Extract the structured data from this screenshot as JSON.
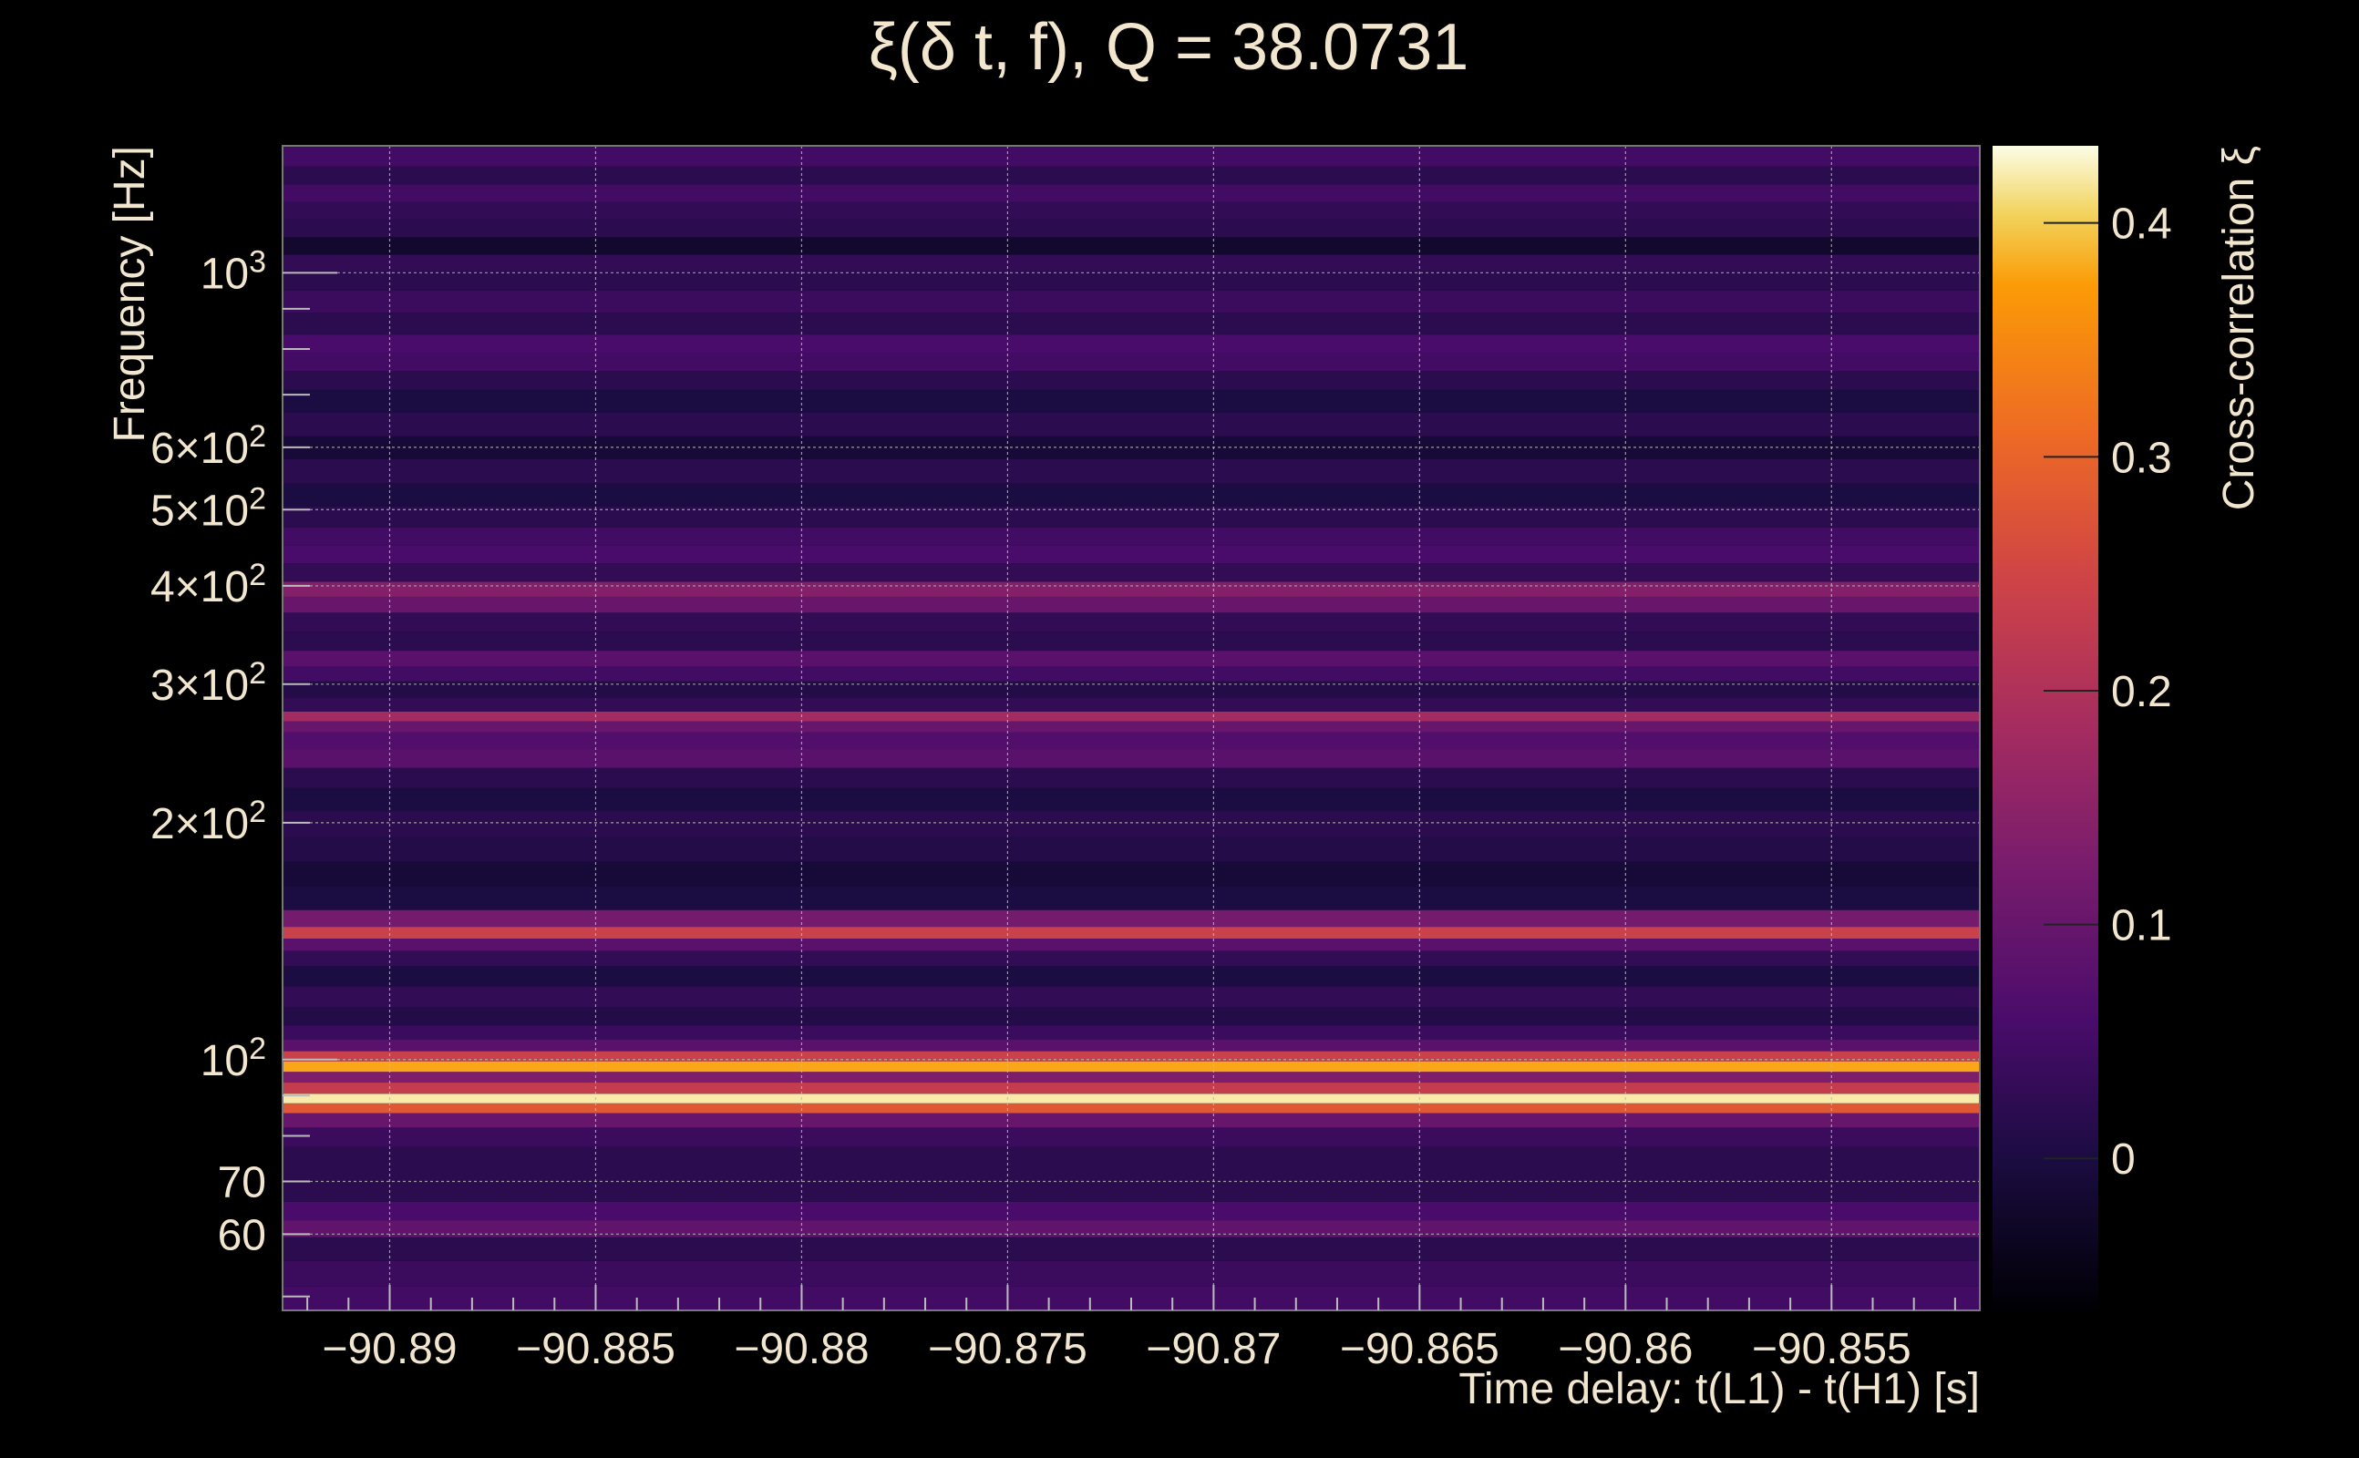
{
  "chart_data": {
    "type": "heatmap",
    "title": "ξ(δ t, f), Q = 38.0731",
    "xlabel": "Time delay: t(L1) - t(H1) [s]",
    "ylabel": "Frequency [Hz]",
    "colorbar_label": "Cross-correlation ξ",
    "colormap": "inferno",
    "x_range": [
      -90.8926,
      -90.8514
    ],
    "y_range": [
      48,
      1450
    ],
    "y_scale": "log",
    "c_range": [
      -0.065,
      0.433
    ],
    "grid": true,
    "x_ticks": [
      {
        "value": -90.89,
        "label": "−90.89"
      },
      {
        "value": -90.885,
        "label": "−90.885"
      },
      {
        "value": -90.88,
        "label": "−90.88"
      },
      {
        "value": -90.875,
        "label": "−90.875"
      },
      {
        "value": -90.87,
        "label": "−90.87"
      },
      {
        "value": -90.865,
        "label": "−90.865"
      },
      {
        "value": -90.86,
        "label": "−90.86"
      },
      {
        "value": -90.855,
        "label": "−90.855"
      }
    ],
    "y_ticks": [
      {
        "value": 60,
        "label": "60"
      },
      {
        "value": 70,
        "label": "70"
      },
      {
        "value": 100,
        "label": "10",
        "sup": "2"
      },
      {
        "value": 200,
        "label": "2×10",
        "sup": "2"
      },
      {
        "value": 300,
        "label": "3×10",
        "sup": "2"
      },
      {
        "value": 400,
        "label": "4×10",
        "sup": "2"
      },
      {
        "value": 500,
        "label": "5×10",
        "sup": "2"
      },
      {
        "value": 600,
        "label": "6×10",
        "sup": "2"
      },
      {
        "value": 1000,
        "label": "10",
        "sup": "3"
      }
    ],
    "c_ticks": [
      {
        "value": 0,
        "label": "0"
      },
      {
        "value": 0.1,
        "label": "0.1"
      },
      {
        "value": 0.2,
        "label": "0.2"
      },
      {
        "value": 0.3,
        "label": "0.3"
      },
      {
        "value": 0.4,
        "label": "0.4"
      }
    ],
    "bands": [
      {
        "f": 50,
        "v": 0.05
      },
      {
        "f": 53,
        "v": 0.04
      },
      {
        "f": 58,
        "v": 0.02
      },
      {
        "f": 61,
        "v": 0.09
      },
      {
        "f": 64,
        "v": 0.06
      },
      {
        "f": 68,
        "v": 0.02
      },
      {
        "f": 75,
        "v": 0.02
      },
      {
        "f": 80,
        "v": 0.04
      },
      {
        "f": 84,
        "v": 0.1
      },
      {
        "f": 87,
        "v": 0.28
      },
      {
        "f": 89,
        "v": 0.42
      },
      {
        "f": 92,
        "v": 0.23
      },
      {
        "f": 95,
        "v": 0.13
      },
      {
        "f": 98,
        "v": 0.38
      },
      {
        "f": 101,
        "v": 0.24
      },
      {
        "f": 104,
        "v": 0.08
      },
      {
        "f": 108,
        "v": 0.04
      },
      {
        "f": 113,
        "v": 0.01
      },
      {
        "f": 120,
        "v": 0.03
      },
      {
        "f": 128,
        "v": 0.0
      },
      {
        "f": 135,
        "v": 0.03
      },
      {
        "f": 140,
        "v": 0.08
      },
      {
        "f": 145,
        "v": 0.24
      },
      {
        "f": 150,
        "v": 0.12
      },
      {
        "f": 160,
        "v": 0.0
      },
      {
        "f": 172,
        "v": -0.01
      },
      {
        "f": 185,
        "v": 0.01
      },
      {
        "f": 200,
        "v": 0.02
      },
      {
        "f": 215,
        "v": 0.0
      },
      {
        "f": 228,
        "v": 0.02
      },
      {
        "f": 242,
        "v": 0.08
      },
      {
        "f": 255,
        "v": 0.07
      },
      {
        "f": 266,
        "v": 0.1
      },
      {
        "f": 272,
        "v": 0.18
      },
      {
        "f": 282,
        "v": 0.03
      },
      {
        "f": 295,
        "v": 0.01
      },
      {
        "f": 310,
        "v": 0.05
      },
      {
        "f": 322,
        "v": 0.08
      },
      {
        "f": 340,
        "v": 0.02
      },
      {
        "f": 360,
        "v": 0.03
      },
      {
        "f": 380,
        "v": 0.1
      },
      {
        "f": 395,
        "v": 0.14
      },
      {
        "f": 415,
        "v": 0.03
      },
      {
        "f": 440,
        "v": 0.06
      },
      {
        "f": 460,
        "v": 0.05
      },
      {
        "f": 490,
        "v": 0.02
      },
      {
        "f": 520,
        "v": 0.0
      },
      {
        "f": 560,
        "v": 0.02
      },
      {
        "f": 600,
        "v": -0.01
      },
      {
        "f": 640,
        "v": 0.02
      },
      {
        "f": 690,
        "v": 0.0
      },
      {
        "f": 730,
        "v": 0.02
      },
      {
        "f": 770,
        "v": 0.05
      },
      {
        "f": 810,
        "v": 0.06
      },
      {
        "f": 860,
        "v": 0.02
      },
      {
        "f": 920,
        "v": 0.04
      },
      {
        "f": 980,
        "v": 0.02
      },
      {
        "f": 1030,
        "v": 0.03
      },
      {
        "f": 1080,
        "v": -0.02
      },
      {
        "f": 1140,
        "v": 0.02
      },
      {
        "f": 1200,
        "v": 0.03
      },
      {
        "f": 1260,
        "v": 0.05
      },
      {
        "f": 1330,
        "v": 0.02
      },
      {
        "f": 1400,
        "v": 0.05
      }
    ]
  }
}
